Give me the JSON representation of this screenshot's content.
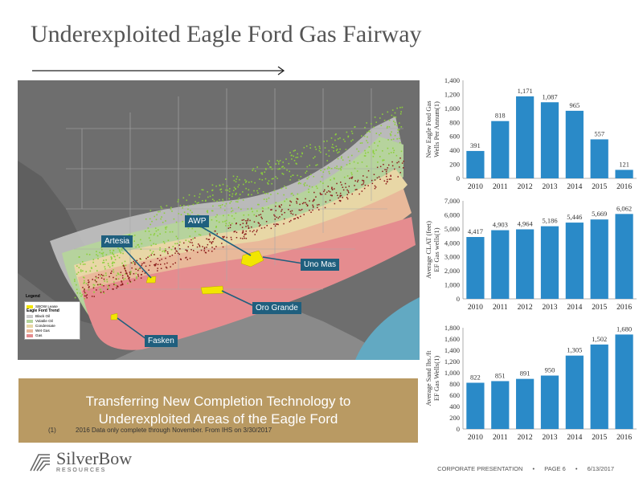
{
  "title": "Underexploited Eagle Ford Gas Fairway",
  "map": {
    "labels": {
      "awp": "AWP",
      "artesia": "Artesia",
      "uno_mas": "Uno Mas",
      "oro_grande": "Oro Grande",
      "fasken": "Fasken"
    },
    "legend": {
      "title": "Legend",
      "subtitle": "Eagle Ford Trend",
      "items": [
        {
          "label": "SBOW Lease",
          "color": "#f2e600"
        },
        {
          "label": "Black Oil",
          "color": "#c8c8c8"
        },
        {
          "label": "Volatile Oil",
          "color": "#b5d49b"
        },
        {
          "label": "Condensate",
          "color": "#e8d7a6"
        },
        {
          "label": "Wet Gas",
          "color": "#e9b99a"
        },
        {
          "label": "Gas",
          "color": "#e58c8f"
        }
      ]
    }
  },
  "banner": {
    "line1": "Transferring New Completion Technology to",
    "line2": "Underexploited Areas of the Eagle Ford"
  },
  "footnote": {
    "number": "(1)",
    "text": "2016 Data only complete through November. From IHS on 3/30/2017"
  },
  "logo": {
    "name": "SilverBow",
    "sub": "RESOURCES"
  },
  "footer": {
    "left": "CORPORATE PRESENTATION",
    "page": "PAGE 6",
    "date": "6/13/2017"
  },
  "colors": {
    "bar": "#2a8ac8",
    "banner": "#b99a63",
    "label_box": "#1f5f7e"
  },
  "chart_data": [
    {
      "type": "bar",
      "categories": [
        "2010",
        "2011",
        "2012",
        "2013",
        "2014",
        "2015",
        "2016"
      ],
      "values": [
        391,
        818,
        1171,
        1087,
        965,
        557,
        121
      ],
      "value_labels": [
        "391",
        "818",
        "1,171",
        "1,087",
        "965",
        "557",
        "121"
      ],
      "ylabel": "New Eagle Ford Gas Wells Per Annum(1)",
      "ylim": [
        0,
        1400
      ],
      "yticks": [
        "0",
        "200",
        "400",
        "600",
        "800",
        "1,000",
        "1,200",
        "1,400"
      ],
      "grid": false
    },
    {
      "type": "bar",
      "categories": [
        "2010",
        "2011",
        "2012",
        "2013",
        "2014",
        "2015",
        "2016"
      ],
      "values": [
        4417,
        4903,
        4964,
        5186,
        5446,
        5669,
        6062
      ],
      "value_labels": [
        "4,417",
        "4,903",
        "4,964",
        "5,186",
        "5,446",
        "5,669",
        "6,062"
      ],
      "ylabel": "Average CLAT (feet) EF Gas wells(1)",
      "ylim": [
        0,
        7000
      ],
      "yticks": [
        "0",
        "1,000",
        "2,000",
        "3,000",
        "4,000",
        "5,000",
        "6,000",
        "7,000"
      ],
      "grid": false
    },
    {
      "type": "bar",
      "categories": [
        "2010",
        "2011",
        "2012",
        "2013",
        "2014",
        "2015",
        "2016"
      ],
      "values": [
        822,
        851,
        891,
        950,
        1305,
        1502,
        1680
      ],
      "value_labels": [
        "822",
        "851",
        "891",
        "950",
        "1,305",
        "1,502",
        "1,680"
      ],
      "ylabel": "Average Sand lbs./ft EF Gas Wells(1)",
      "ylim": [
        0,
        1800
      ],
      "yticks": [
        "0",
        "200",
        "400",
        "600",
        "800",
        "1,000",
        "1,200",
        "1,400",
        "1,600",
        "1,800"
      ],
      "grid": false
    }
  ]
}
